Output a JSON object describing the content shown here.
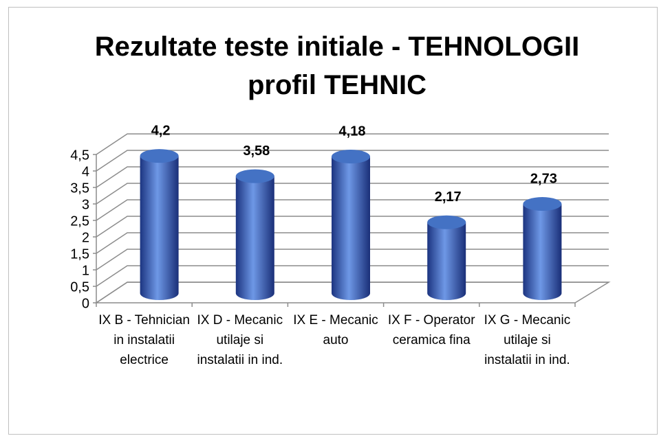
{
  "chart_data": {
    "type": "bar3d",
    "title": "Rezultate teste initiale - TEHNOLOGII profil TEHNIC",
    "categories": [
      "IX B - Tehnician in instalatii electrice",
      "IX D - Mecanic utilaje si instalatii in ind.",
      "IX E - Mecanic auto",
      "IX F - Operator ceramica fina",
      "IX G - Mecanic utilaje si instalatii in ind."
    ],
    "values": [
      4.2,
      3.58,
      4.18,
      2.17,
      2.73
    ],
    "value_labels": [
      "4,2",
      "3,58",
      "4,18",
      "2,17",
      "2,73"
    ],
    "color": "#4472c4",
    "ylim": [
      0,
      4.5
    ],
    "yticks": [
      0,
      {
        "value": 0.5,
        "label": "0,5"
      },
      1,
      {
        "value": 1.5,
        "label": "1,5"
      },
      2,
      {
        "value": 2.5,
        "label": "2,5"
      },
      3,
      {
        "value": 3.5,
        "label": "3,5"
      },
      4,
      {
        "value": 4.5,
        "label": "4,5"
      }
    ],
    "grid": true
  }
}
